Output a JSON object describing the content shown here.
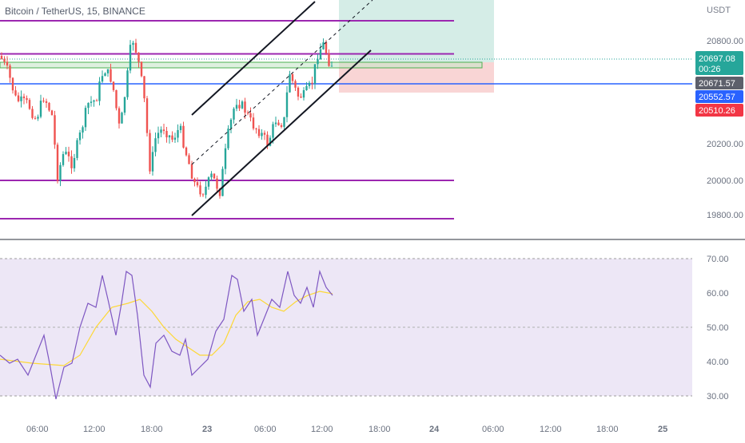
{
  "header": {
    "symbol_title": "Bitcoin / TetherUS, 15, BINANCE",
    "currency": "USDT"
  },
  "price_axis": {
    "ticks": [
      "20800.00",
      "20200.00",
      "20000.00",
      "19800.00"
    ],
    "badges": {
      "current_price": "20697.08",
      "countdown": "00:26",
      "level_grey": "20671.57",
      "level_blue": "20552.57",
      "level_red": "20510.26"
    }
  },
  "rsi_axis": {
    "ticks": [
      "70.00",
      "60.00",
      "50.00",
      "40.00",
      "30.00"
    ]
  },
  "time_axis": {
    "ticks": [
      "06:00",
      "12:00",
      "18:00",
      "23",
      "06:00",
      "12:00",
      "18:00",
      "24",
      "06:00",
      "12:00",
      "18:00",
      "25"
    ]
  },
  "colors": {
    "bull": "#26a69a",
    "bear": "#ef5350",
    "purple_level": "#9c27b0",
    "blue_level": "#2962ff",
    "rsi_line": "#7e57c2",
    "rsi_ma": "#fdd835",
    "rsi_band": "#ede7f6",
    "long_profit": "#d5ede7",
    "long_loss": "#f9d5d5"
  },
  "icons": []
}
